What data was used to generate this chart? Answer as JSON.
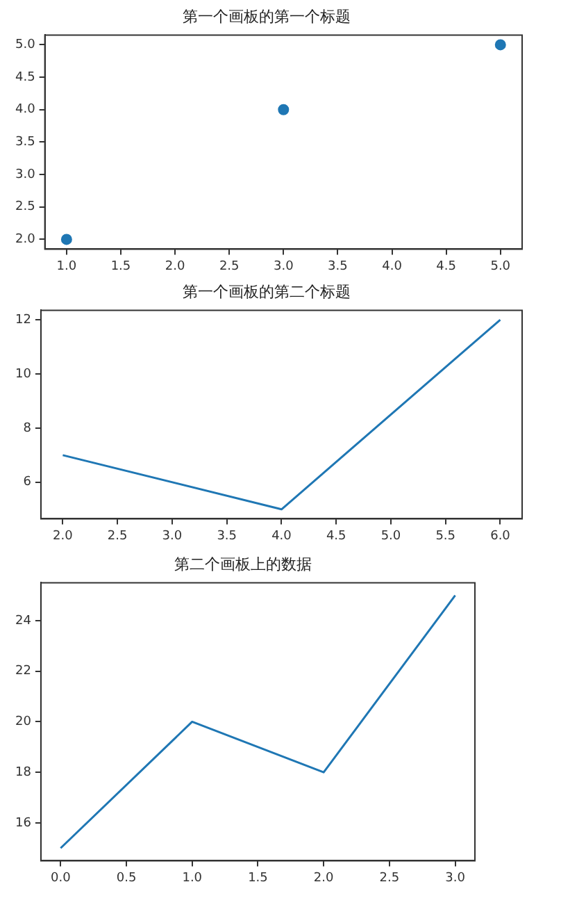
{
  "chart_data": [
    {
      "type": "scatter",
      "title": "第一个画板的第一个标题",
      "x": [
        1,
        3,
        5
      ],
      "values": [
        2,
        4,
        5
      ],
      "color": "#1f77b4",
      "marker": "circle",
      "xlim": [
        0.8,
        5.2
      ],
      "ylim": [
        1.85,
        5.15
      ],
      "xticks": [
        {
          "value": 1,
          "label": "1.0"
        },
        1.5,
        {
          "value": 2,
          "label": "2.0"
        },
        2.5,
        {
          "value": 3,
          "label": "3.0"
        },
        3.5,
        {
          "value": 4,
          "label": "4.0"
        },
        4.5,
        {
          "value": 5,
          "label": "5.0"
        }
      ],
      "yticks": [
        {
          "value": 2,
          "label": "2.0"
        },
        2.5,
        {
          "value": 3,
          "label": "3.0"
        },
        3.5,
        {
          "value": 4,
          "label": "4.0"
        },
        4.5,
        {
          "value": 5,
          "label": "5.0"
        }
      ]
    },
    {
      "type": "line",
      "title": "第一个画板的第二个标题",
      "x": [
        2,
        4,
        6
      ],
      "values": [
        7,
        5,
        12
      ],
      "color": "#1f77b4",
      "marker": "none",
      "xlim": [
        1.8,
        6.2
      ],
      "ylim": [
        4.65,
        12.35
      ],
      "xticks": [
        {
          "value": 2,
          "label": "2.0"
        },
        2.5,
        {
          "value": 3,
          "label": "3.0"
        },
        3.5,
        {
          "value": 4,
          "label": "4.0"
        },
        4.5,
        {
          "value": 5,
          "label": "5.0"
        },
        5.5,
        {
          "value": 6,
          "label": "6.0"
        }
      ],
      "yticks": [
        6,
        8,
        10,
        12
      ]
    },
    {
      "type": "line",
      "title": "第二个画板上的数据",
      "x": [
        0,
        1,
        2,
        3
      ],
      "values": [
        15,
        20,
        18,
        25
      ],
      "color": "#1f77b4",
      "marker": "none",
      "xlim": [
        -0.15,
        3.15
      ],
      "ylim": [
        14.5,
        25.5
      ],
      "xticks": [
        {
          "value": 0,
          "label": "0.0"
        },
        0.5,
        {
          "value": 1,
          "label": "1.0"
        },
        1.5,
        {
          "value": 2,
          "label": "2.0"
        },
        2.5,
        {
          "value": 3,
          "label": "3.0"
        }
      ],
      "yticks": [
        16,
        18,
        20,
        22,
        24
      ]
    }
  ]
}
